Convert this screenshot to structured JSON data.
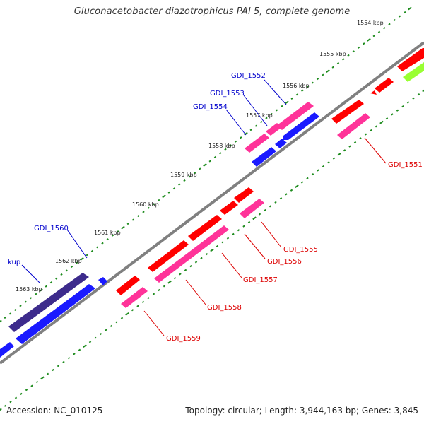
{
  "header": {
    "title": "Gluconacetobacter diazotrophicus PAl 5, complete genome"
  },
  "footer": {
    "accession": "Accession: NC_010125",
    "summary": "Topology: circular; Length: 3,944,163 bp; Genes: 3,845"
  },
  "scale_labels": [
    "1554 kbp",
    "1555 kbp",
    "1556 kbp",
    "1557 kbp",
    "1558 kbp",
    "1559 kbp",
    "1560 kbp",
    "1561 kbp",
    "1562 kbp",
    "1563 kbp"
  ],
  "genes_outer": [
    {
      "label": "GDI_1552",
      "color": "#ff3399"
    },
    {
      "label": "GDI_1553",
      "color": "#ff3399"
    },
    {
      "label": "GDI_1554",
      "color": "#ff3399"
    },
    {
      "label": "GDI_1560",
      "color": "#1a1aff"
    },
    {
      "label": "kup",
      "color": "#3d2b8c"
    }
  ],
  "genes_inner": [
    {
      "label": "GDI_1551",
      "color": "#ff0000"
    },
    {
      "label": "GDI_1555",
      "color": "#ff0000"
    },
    {
      "label": "GDI_1556",
      "color": "#ff0000"
    },
    {
      "label": "GDI_1557",
      "color": "#ff0000"
    },
    {
      "label": "GDI_1558",
      "color": "#ff0000"
    },
    {
      "label": "GDI_1559",
      "color": "#ff0000"
    }
  ],
  "colors": {
    "backbone": "#808080",
    "tick_dots": "#1e8c1e",
    "forward_label": "#0000cc",
    "reverse_label": "#dd0000",
    "red": "#ff0000",
    "pink": "#ff3399",
    "blue": "#1a1aff",
    "darkblue": "#3d2b8c",
    "lime": "#99ff33"
  }
}
